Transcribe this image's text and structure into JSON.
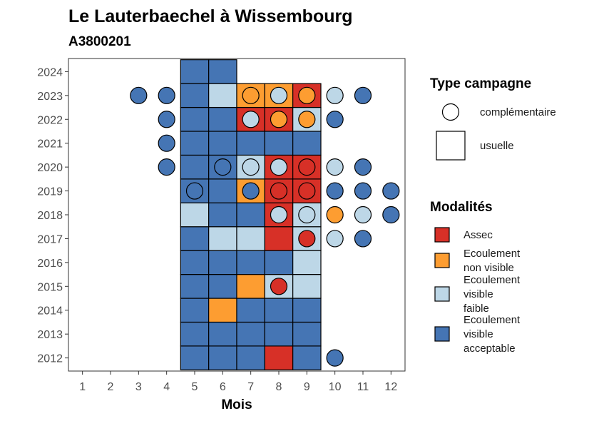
{
  "chart_data": {
    "type": "heatmap",
    "title": "Le Lauterbaechel à Wissembourg",
    "subtitle": "A3800201",
    "xlabel": "Mois",
    "ylabel": "",
    "x_ticks": [
      "1",
      "2",
      "3",
      "4",
      "5",
      "6",
      "7",
      "8",
      "9",
      "10",
      "11",
      "12"
    ],
    "y_ticks": [
      "2012",
      "2013",
      "2014",
      "2015",
      "2016",
      "2017",
      "2018",
      "2019",
      "2020",
      "2021",
      "2022",
      "2023",
      "2024"
    ],
    "xlim": [
      0.5,
      12.5
    ],
    "ylim": [
      2011.45,
      2024.55
    ],
    "grid": false,
    "legend_position": "right",
    "legend_type": {
      "title": "Type campagne",
      "items": [
        {
          "key": "complementaire",
          "label": "complémentaire",
          "shape": "circle"
        },
        {
          "key": "usuelle",
          "label": "usuelle",
          "shape": "square"
        }
      ]
    },
    "legend_modalites": {
      "title": "Modalités",
      "items": [
        {
          "key": "assec",
          "lines": [
            "Assec"
          ],
          "color": "#d73027"
        },
        {
          "key": "ecoulement_non_visible",
          "lines": [
            "Ecoulement",
            "non visible"
          ],
          "color": "#fd9d31"
        },
        {
          "key": "ecoulement_visible_faible",
          "lines": [
            "Ecoulement",
            "visible",
            "faible"
          ],
          "color": "#bdd7e7"
        },
        {
          "key": "ecoulement_visible_acceptable",
          "lines": [
            "Ecoulement",
            "visible",
            "acceptable"
          ],
          "color": "#4575b4"
        }
      ]
    },
    "squares": [
      {
        "year": 2012,
        "month": 5,
        "mod": "ecoulement_visible_acceptable"
      },
      {
        "year": 2012,
        "month": 6,
        "mod": "ecoulement_visible_acceptable"
      },
      {
        "year": 2012,
        "month": 7,
        "mod": "ecoulement_visible_acceptable"
      },
      {
        "year": 2012,
        "month": 8,
        "mod": "assec"
      },
      {
        "year": 2012,
        "month": 9,
        "mod": "ecoulement_visible_acceptable"
      },
      {
        "year": 2013,
        "month": 5,
        "mod": "ecoulement_visible_acceptable"
      },
      {
        "year": 2013,
        "month": 6,
        "mod": "ecoulement_visible_acceptable"
      },
      {
        "year": 2013,
        "month": 7,
        "mod": "ecoulement_visible_acceptable"
      },
      {
        "year": 2013,
        "month": 8,
        "mod": "ecoulement_visible_acceptable"
      },
      {
        "year": 2013,
        "month": 9,
        "mod": "ecoulement_visible_acceptable"
      },
      {
        "year": 2014,
        "month": 5,
        "mod": "ecoulement_visible_acceptable"
      },
      {
        "year": 2014,
        "month": 6,
        "mod": "ecoulement_non_visible"
      },
      {
        "year": 2014,
        "month": 7,
        "mod": "ecoulement_visible_acceptable"
      },
      {
        "year": 2014,
        "month": 8,
        "mod": "ecoulement_visible_acceptable"
      },
      {
        "year": 2014,
        "month": 9,
        "mod": "ecoulement_visible_acceptable"
      },
      {
        "year": 2015,
        "month": 5,
        "mod": "ecoulement_visible_acceptable"
      },
      {
        "year": 2015,
        "month": 6,
        "mod": "ecoulement_visible_acceptable"
      },
      {
        "year": 2015,
        "month": 7,
        "mod": "ecoulement_non_visible"
      },
      {
        "year": 2015,
        "month": 8,
        "mod": "ecoulement_visible_faible"
      },
      {
        "year": 2015,
        "month": 9,
        "mod": "ecoulement_visible_faible"
      },
      {
        "year": 2016,
        "month": 5,
        "mod": "ecoulement_visible_acceptable"
      },
      {
        "year": 2016,
        "month": 6,
        "mod": "ecoulement_visible_acceptable"
      },
      {
        "year": 2016,
        "month": 7,
        "mod": "ecoulement_visible_acceptable"
      },
      {
        "year": 2016,
        "month": 8,
        "mod": "ecoulement_visible_acceptable"
      },
      {
        "year": 2016,
        "month": 9,
        "mod": "ecoulement_visible_faible"
      },
      {
        "year": 2017,
        "month": 5,
        "mod": "ecoulement_visible_acceptable"
      },
      {
        "year": 2017,
        "month": 6,
        "mod": "ecoulement_visible_faible"
      },
      {
        "year": 2017,
        "month": 7,
        "mod": "ecoulement_visible_faible"
      },
      {
        "year": 2017,
        "month": 8,
        "mod": "assec"
      },
      {
        "year": 2017,
        "month": 9,
        "mod": "ecoulement_visible_faible"
      },
      {
        "year": 2018,
        "month": 5,
        "mod": "ecoulement_visible_faible"
      },
      {
        "year": 2018,
        "month": 6,
        "mod": "ecoulement_visible_acceptable"
      },
      {
        "year": 2018,
        "month": 7,
        "mod": "ecoulement_visible_acceptable"
      },
      {
        "year": 2018,
        "month": 8,
        "mod": "assec"
      },
      {
        "year": 2018,
        "month": 9,
        "mod": "ecoulement_visible_faible"
      },
      {
        "year": 2019,
        "month": 5,
        "mod": "ecoulement_visible_acceptable"
      },
      {
        "year": 2019,
        "month": 6,
        "mod": "ecoulement_visible_acceptable"
      },
      {
        "year": 2019,
        "month": 7,
        "mod": "ecoulement_non_visible"
      },
      {
        "year": 2019,
        "month": 8,
        "mod": "assec"
      },
      {
        "year": 2019,
        "month": 9,
        "mod": "assec"
      },
      {
        "year": 2020,
        "month": 5,
        "mod": "ecoulement_visible_acceptable"
      },
      {
        "year": 2020,
        "month": 6,
        "mod": "ecoulement_visible_acceptable"
      },
      {
        "year": 2020,
        "month": 7,
        "mod": "ecoulement_visible_faible"
      },
      {
        "year": 2020,
        "month": 8,
        "mod": "assec"
      },
      {
        "year": 2020,
        "month": 9,
        "mod": "assec"
      },
      {
        "year": 2021,
        "month": 5,
        "mod": "ecoulement_visible_acceptable"
      },
      {
        "year": 2021,
        "month": 6,
        "mod": "ecoulement_visible_acceptable"
      },
      {
        "year": 2021,
        "month": 7,
        "mod": "ecoulement_visible_acceptable"
      },
      {
        "year": 2021,
        "month": 8,
        "mod": "ecoulement_visible_acceptable"
      },
      {
        "year": 2021,
        "month": 9,
        "mod": "ecoulement_visible_acceptable"
      },
      {
        "year": 2022,
        "month": 5,
        "mod": "ecoulement_visible_acceptable"
      },
      {
        "year": 2022,
        "month": 6,
        "mod": "ecoulement_visible_acceptable"
      },
      {
        "year": 2022,
        "month": 7,
        "mod": "assec"
      },
      {
        "year": 2022,
        "month": 8,
        "mod": "assec"
      },
      {
        "year": 2022,
        "month": 9,
        "mod": "ecoulement_visible_faible"
      },
      {
        "year": 2023,
        "month": 5,
        "mod": "ecoulement_visible_acceptable"
      },
      {
        "year": 2023,
        "month": 6,
        "mod": "ecoulement_visible_faible"
      },
      {
        "year": 2023,
        "month": 7,
        "mod": "ecoulement_non_visible"
      },
      {
        "year": 2023,
        "month": 8,
        "mod": "ecoulement_non_visible"
      },
      {
        "year": 2023,
        "month": 9,
        "mod": "assec"
      },
      {
        "year": 2024,
        "month": 5,
        "mod": "ecoulement_visible_acceptable"
      },
      {
        "year": 2024,
        "month": 6,
        "mod": "ecoulement_visible_acceptable"
      }
    ],
    "circles": [
      {
        "year": 2012,
        "month": 10,
        "mod": "ecoulement_visible_acceptable"
      },
      {
        "year": 2015,
        "month": 8,
        "mod": "assec"
      },
      {
        "year": 2017,
        "month": 9,
        "mod": "assec"
      },
      {
        "year": 2017,
        "month": 10,
        "mod": "ecoulement_visible_faible"
      },
      {
        "year": 2017,
        "month": 11,
        "mod": "ecoulement_visible_acceptable"
      },
      {
        "year": 2018,
        "month": 8,
        "mod": "ecoulement_visible_faible"
      },
      {
        "year": 2018,
        "month": 9,
        "mod": "ecoulement_visible_faible"
      },
      {
        "year": 2018,
        "month": 10,
        "mod": "ecoulement_non_visible"
      },
      {
        "year": 2018,
        "month": 11,
        "mod": "ecoulement_visible_faible"
      },
      {
        "year": 2018,
        "month": 12,
        "mod": "ecoulement_visible_acceptable"
      },
      {
        "year": 2019,
        "month": 5,
        "mod": "ecoulement_visible_acceptable"
      },
      {
        "year": 2019,
        "month": 7,
        "mod": "ecoulement_visible_acceptable"
      },
      {
        "year": 2019,
        "month": 8,
        "mod": "assec"
      },
      {
        "year": 2019,
        "month": 9,
        "mod": "assec"
      },
      {
        "year": 2019,
        "month": 10,
        "mod": "ecoulement_visible_acceptable"
      },
      {
        "year": 2019,
        "month": 11,
        "mod": "ecoulement_visible_acceptable"
      },
      {
        "year": 2019,
        "month": 12,
        "mod": "ecoulement_visible_acceptable"
      },
      {
        "year": 2020,
        "month": 4,
        "mod": "ecoulement_visible_acceptable"
      },
      {
        "year": 2020,
        "month": 6,
        "mod": "ecoulement_visible_acceptable"
      },
      {
        "year": 2020,
        "month": 7,
        "mod": "ecoulement_visible_faible"
      },
      {
        "year": 2020,
        "month": 8,
        "mod": "ecoulement_visible_faible"
      },
      {
        "year": 2020,
        "month": 9,
        "mod": "assec"
      },
      {
        "year": 2020,
        "month": 10,
        "mod": "ecoulement_visible_faible"
      },
      {
        "year": 2020,
        "month": 11,
        "mod": "ecoulement_visible_acceptable"
      },
      {
        "year": 2021,
        "month": 4,
        "mod": "ecoulement_visible_acceptable"
      },
      {
        "year": 2022,
        "month": 4,
        "mod": "ecoulement_visible_acceptable"
      },
      {
        "year": 2022,
        "month": 7,
        "mod": "ecoulement_visible_faible"
      },
      {
        "year": 2022,
        "month": 8,
        "mod": "ecoulement_non_visible"
      },
      {
        "year": 2022,
        "month": 9,
        "mod": "ecoulement_non_visible"
      },
      {
        "year": 2022,
        "month": 10,
        "mod": "ecoulement_visible_acceptable"
      },
      {
        "year": 2023,
        "month": 3,
        "mod": "ecoulement_visible_acceptable"
      },
      {
        "year": 2023,
        "month": 4,
        "mod": "ecoulement_visible_acceptable"
      },
      {
        "year": 2023,
        "month": 7,
        "mod": "ecoulement_non_visible"
      },
      {
        "year": 2023,
        "month": 8,
        "mod": "ecoulement_visible_faible"
      },
      {
        "year": 2023,
        "month": 9,
        "mod": "ecoulement_non_visible"
      },
      {
        "year": 2023,
        "month": 10,
        "mod": "ecoulement_visible_faible"
      },
      {
        "year": 2023,
        "month": 11,
        "mod": "ecoulement_visible_acceptable"
      }
    ]
  }
}
